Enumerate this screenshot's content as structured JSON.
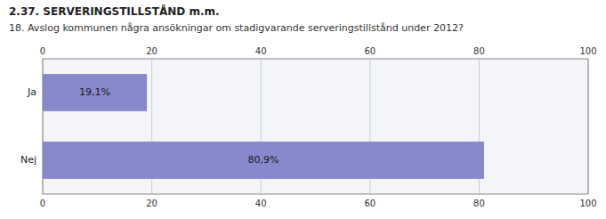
{
  "chart_data": {
    "type": "bar",
    "orientation": "horizontal",
    "title": "2.37. SERVERINGSTILLSTÅND m.m.",
    "subtitle": "18. Avslog kommunen några ansökningar om stadigvarande serveringstillstånd under 2012?",
    "categories": [
      "Nej",
      "Ja"
    ],
    "values": [
      80.9,
      19.1
    ],
    "value_labels": [
      "80,9%",
      "19,1%"
    ],
    "data_labels": true,
    "color": "#8888cc",
    "xlim": [
      0,
      100
    ],
    "xticks": [
      0,
      20,
      40,
      60,
      80,
      100
    ],
    "grid": true
  }
}
